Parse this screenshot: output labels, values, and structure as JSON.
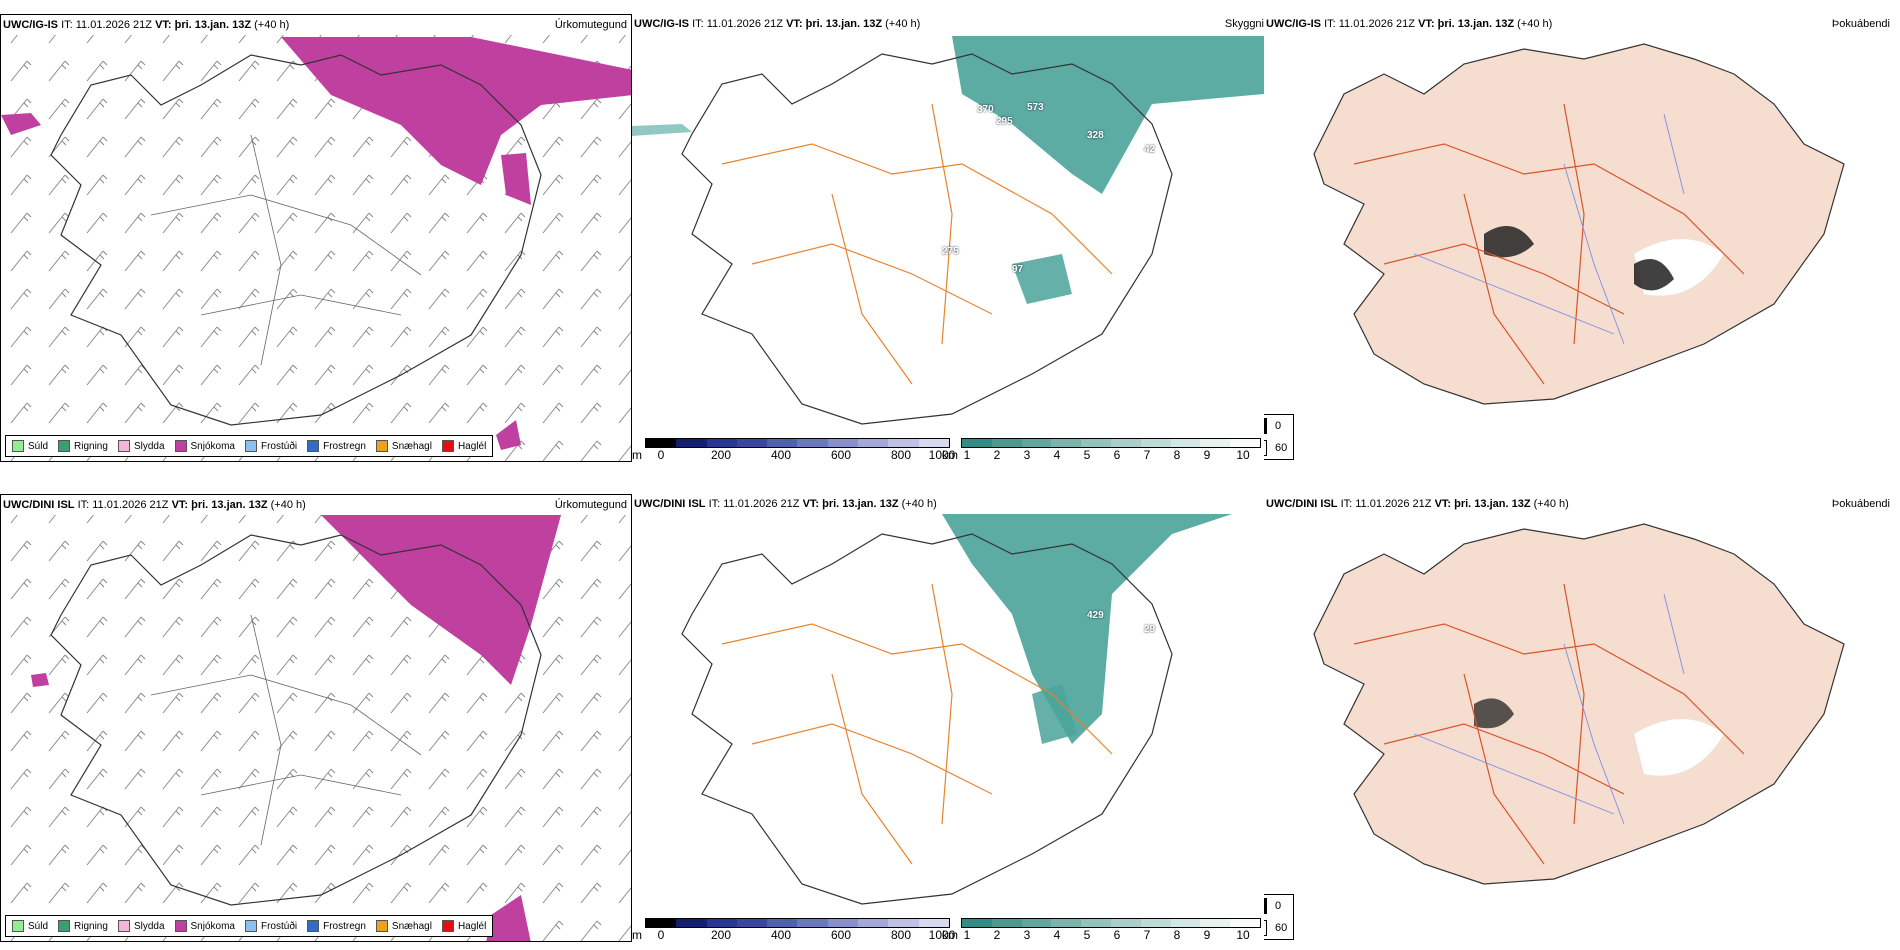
{
  "colors": {
    "precip_type": [
      "#90ee90",
      "#3aa070",
      "#f4b6d8",
      "#c040a0",
      "#8fbfef",
      "#2f6fbf",
      "#f0a020",
      "#e01010"
    ],
    "height_scale": [
      "#000000",
      "#141e70",
      "#283594",
      "#3a45a0",
      "#5060b0",
      "#6a78c0",
      "#8590cc",
      "#a2a8d8",
      "#bec0e4",
      "#d8d8ee"
    ],
    "ceiling_scale": [
      "#2e8d84",
      "#4a9a92",
      "#62a79f",
      "#7ab4ad",
      "#92c2bb",
      "#a8cfc9",
      "#bddcd7",
      "#d2e8e4",
      "#e6f3f1",
      "#f8fcfb"
    ],
    "snow_band": "#c040a0",
    "ceiling_fill": "#4aa39a",
    "land_fill": "#f5ddd0",
    "roads": "#e8832a",
    "rivers": "#7b8fe8"
  },
  "top": {
    "model": "UWC/IG-IS",
    "it_label": "IT:",
    "it_value": "11.01.2026 21Z",
    "vt_label": "VT:",
    "vt_value": "þri. 13.jan. 13Z",
    "lead": "(+40 h)"
  },
  "bottom": {
    "model": "UWC/DINI ISL",
    "it_label": "IT:",
    "it_value": "11.01.2026 21Z",
    "vt_label": "VT:",
    "vt_value": "þri. 13.jan. 13Z",
    "lead": "(+40 h)"
  },
  "panel_titles": {
    "precip": "Úrkomutegund",
    "ceiling": "Skyggni",
    "fog": "Þokuábendi"
  },
  "precip_legend": [
    "Súld",
    "Rigning",
    "Slydda",
    "Snjókoma",
    "Frostúði",
    "Frostregn",
    "Snæhagl",
    "Haglél"
  ],
  "height_bar": {
    "unit": "m",
    "ticks": [
      "0",
      "200",
      "400",
      "600",
      "800",
      "1000"
    ]
  },
  "ceiling_bar": {
    "unit": "km",
    "ticks": [
      "1",
      "2",
      "3",
      "4",
      "5",
      "6",
      "7",
      "8",
      "9",
      "10"
    ]
  },
  "fog_legend": {
    "max": "0",
    "min": "60"
  },
  "top_values": [
    "370",
    "295",
    "573",
    "328",
    "42",
    "275",
    "97"
  ],
  "bottom_values": [
    "429",
    "29"
  ]
}
